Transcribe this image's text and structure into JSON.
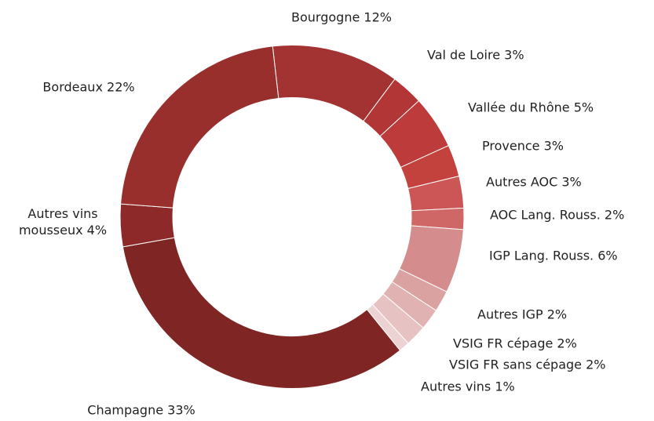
{
  "chart_data": {
    "type": "donut",
    "categories": [
      "Bourgogne",
      "Val de Loire",
      "Vallée du Rhône",
      "Provence",
      "Autres AOC",
      "AOC Lang. Rouss.",
      "IGP Lang. Rouss.",
      "Autres IGP",
      "VSIG FR cépage",
      "VSIG FR sans cépage",
      "Autres vins",
      "Champagne",
      "Autres vins mousseux",
      "Bordeaux"
    ],
    "values": [
      12,
      3,
      5,
      3,
      3,
      2,
      6,
      2,
      2,
      2,
      1,
      33,
      4,
      22
    ],
    "value_labels": [
      "12%",
      "3%",
      "5%",
      "3%",
      "3%",
      "2%",
      "6%",
      "2%",
      "2%",
      "2%",
      "1%",
      "33%",
      "4%",
      "22%"
    ],
    "colors": [
      "#a33232",
      "#b23636",
      "#bd3b3b",
      "#c4423d",
      "#cc5656",
      "#cf6767",
      "#d48c8c",
      "#dba2a2",
      "#e0b2b2",
      "#e6c2c2",
      "#ecd2d2",
      "#7f2624",
      "#8d2a29",
      "#982f2d"
    ]
  }
}
